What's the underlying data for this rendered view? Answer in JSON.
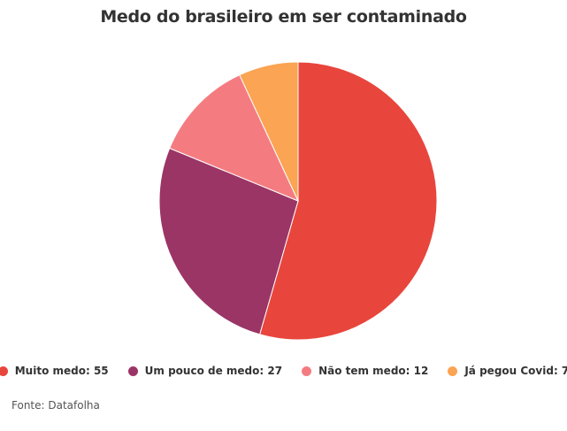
{
  "chart_data": {
    "type": "pie",
    "title": "Medo do brasileiro em ser contaminado",
    "slices": [
      {
        "label": "Muito medo",
        "value": 55,
        "color": "#e8463c",
        "legend": "Muito medo: 55"
      },
      {
        "label": "Um pouco de medo",
        "value": 27,
        "color": "#9b3566",
        "legend": "Um pouco de medo: 27"
      },
      {
        "label": "Não tem medo",
        "value": 12,
        "color": "#f47c80",
        "legend": "Não tem medo: 12"
      },
      {
        "label": "Já pegou Covid",
        "value": 7,
        "color": "#fba453",
        "legend": "Já pegou Covid: 7"
      }
    ],
    "legend_position": "bottom"
  },
  "source": "Fonte: Datafolha"
}
